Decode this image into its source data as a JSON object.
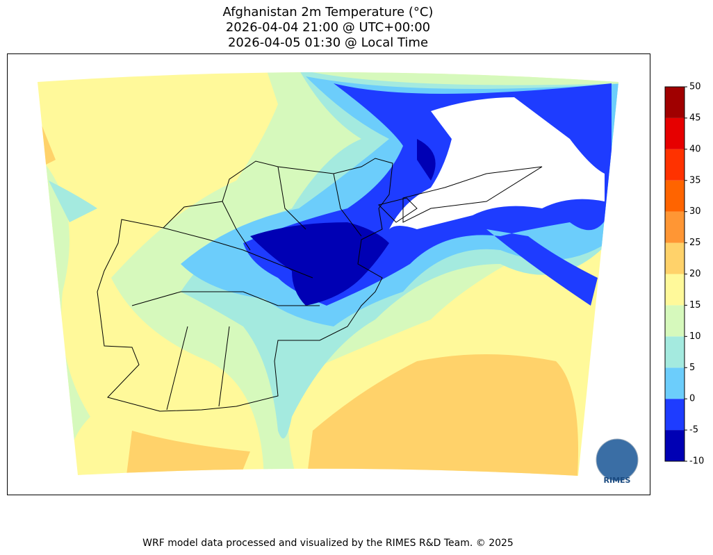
{
  "title": [
    "Afghanistan 2m Temperature (°C)",
    "2026-04-04 21:00 @ UTC+00:00",
    "2026-04-05 01:30 @ Local Time"
  ],
  "colorbar": {
    "ticks": [
      -10,
      -5,
      0,
      5,
      10,
      15,
      20,
      25,
      30,
      35,
      40,
      45,
      50
    ],
    "colors": [
      "#0000b4",
      "#1e3cff",
      "#6ccdfb",
      "#a4eadf",
      "#d6f9bc",
      "#fff99a",
      "#ffd26a",
      "#ff9634",
      "#ff6400",
      "#ff3200",
      "#e60000",
      "#a00000"
    ]
  },
  "logo": "RIMES",
  "footer": "WRF model data processed and visualized by the RIMES R&D Team. © 2025"
}
